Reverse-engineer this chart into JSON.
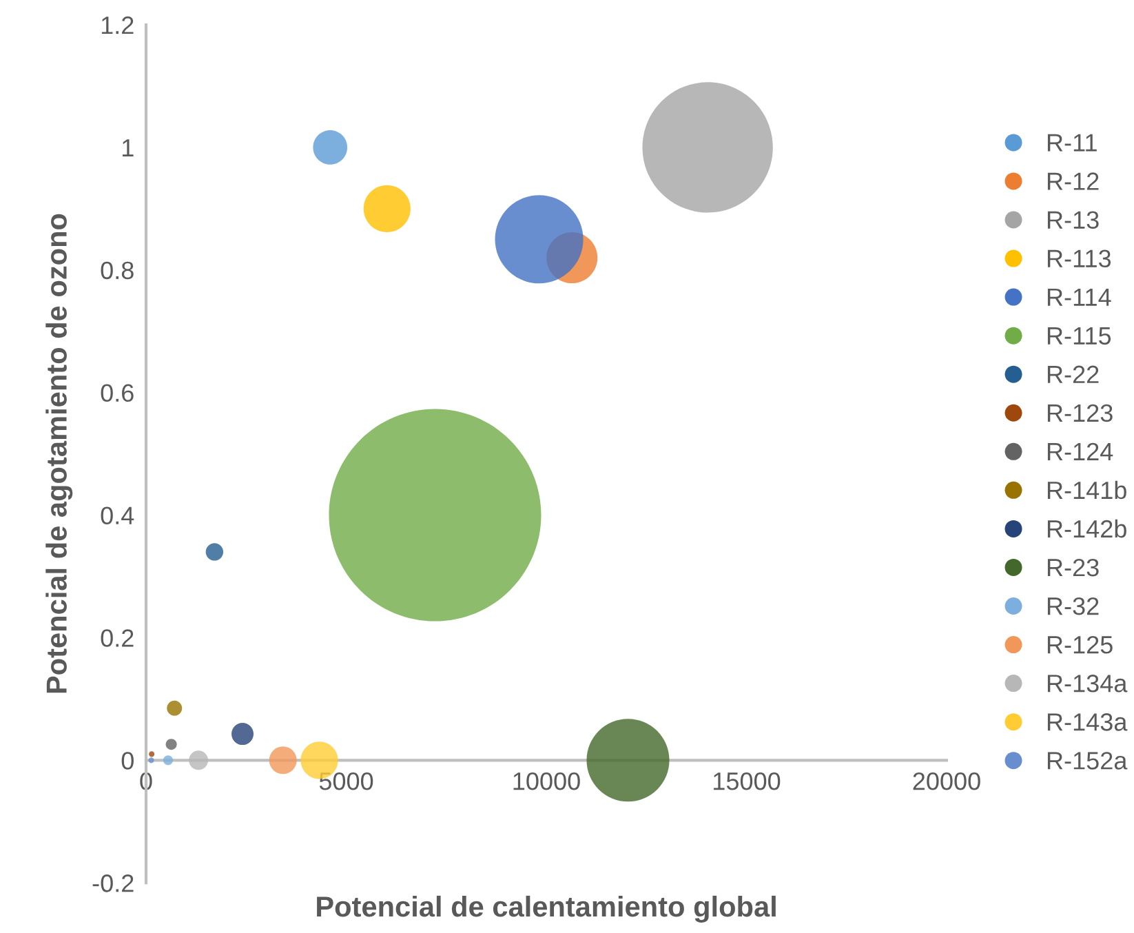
{
  "chart_data": {
    "type": "bubble",
    "xlabel": "Potencial de calentamiento global",
    "ylabel": "Potencial de agotamiento de ozono",
    "xlim": [
      0,
      20000
    ],
    "xticks": [
      0,
      5000,
      10000,
      15000,
      20000
    ],
    "ylim": [
      -0.2,
      1.2
    ],
    "yticks": [
      -0.2,
      0,
      0.2,
      0.4,
      0.6,
      0.8,
      1,
      1.2
    ],
    "grid": false,
    "legend": "right",
    "marker": "circle",
    "series": [
      {
        "name": "R-11",
        "color": "#5b9bd5",
        "x": [
          4600
        ],
        "values": [
          1
        ],
        "sizes": [
          0.026
        ]
      },
      {
        "name": "R-12",
        "color": "#ed7d31",
        "x": [
          10640
        ],
        "values": [
          0.82
        ],
        "sizes": [
          0.058
        ]
      },
      {
        "name": "R-13",
        "color": "#a5a5a5",
        "x": [
          14030
        ],
        "values": [
          1
        ],
        "sizes": [
          0.378
        ]
      },
      {
        "name": "R-113",
        "color": "#ffc000",
        "x": [
          6020
        ],
        "values": [
          0.9
        ],
        "sizes": [
          0.049
        ]
      },
      {
        "name": "R-114",
        "color": "#4472c4",
        "x": [
          9820
        ],
        "values": [
          0.85
        ],
        "sizes": [
          0.173
        ]
      },
      {
        "name": "R-115",
        "color": "#70ad47",
        "x": [
          7220
        ],
        "values": [
          0.4
        ],
        "sizes": [
          1
        ]
      },
      {
        "name": "R-22",
        "color": "#255e91",
        "x": [
          1710
        ],
        "values": [
          0.34
        ],
        "sizes": [
          0.0068
        ]
      },
      {
        "name": "R-123",
        "color": "#9e480e",
        "x": [
          140
        ],
        "values": [
          0.01
        ],
        "sizes": [
          0.0007
        ]
      },
      {
        "name": "R-124",
        "color": "#636363",
        "x": [
          630
        ],
        "values": [
          0.026
        ],
        "sizes": [
          0.0027
        ]
      },
      {
        "name": "R-141b",
        "color": "#997300",
        "x": [
          710
        ],
        "values": [
          0.085
        ],
        "sizes": [
          0.0051
        ]
      },
      {
        "name": "R-142b",
        "color": "#264478",
        "x": [
          2410
        ],
        "values": [
          0.043
        ],
        "sizes": [
          0.0108
        ]
      },
      {
        "name": "R-23",
        "color": "#43682b",
        "x": [
          12040
        ],
        "values": [
          0
        ],
        "sizes": [
          0.152
        ]
      },
      {
        "name": "R-32",
        "color": "#7cafdd",
        "x": [
          550
        ],
        "values": [
          0
        ],
        "sizes": [
          0.0021
        ]
      },
      {
        "name": "R-125",
        "color": "#f1975a",
        "x": [
          3420
        ],
        "values": [
          0
        ],
        "sizes": [
          0.0169
        ]
      },
      {
        "name": "R-134a",
        "color": "#b7b7b7",
        "x": [
          1310
        ],
        "values": [
          0
        ],
        "sizes": [
          0.0083
        ]
      },
      {
        "name": "R-143a",
        "color": "#ffcd33",
        "x": [
          4330
        ],
        "values": [
          0
        ],
        "sizes": [
          0.031
        ]
      },
      {
        "name": "R-152a",
        "color": "#698ed0",
        "x": [
          130
        ],
        "values": [
          0
        ],
        "sizes": [
          0.0007
        ]
      }
    ]
  }
}
